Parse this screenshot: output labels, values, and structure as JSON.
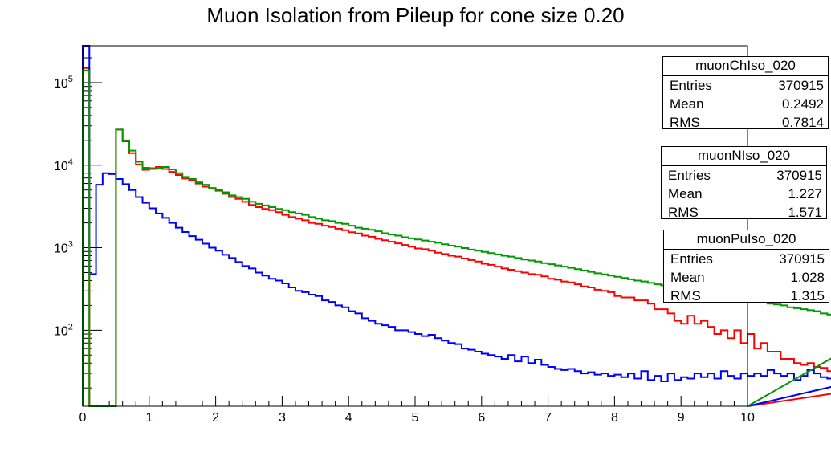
{
  "chart_data": {
    "type": "step histogram",
    "title": "Muon Isolation from Pileup for cone size 0.20",
    "xlim": [
      0,
      10
    ],
    "ylim": [
      12,
      280000
    ],
    "yscale": "log",
    "bin_width": 0.1,
    "x_ticks": [
      "0",
      "1",
      "2",
      "3",
      "4",
      "5",
      "6",
      "7",
      "8",
      "9",
      "10"
    ],
    "y_ticks": [
      {
        "value": 100000,
        "base": "10",
        "exp": "5"
      },
      {
        "value": 10000,
        "base": "10",
        "exp": "4"
      },
      {
        "value": 1000,
        "base": "10",
        "exp": "3"
      },
      {
        "value": 100,
        "base": "10",
        "exp": "2"
      }
    ],
    "series": [
      {
        "name": "muonChIso_020",
        "color": "#ff0000",
        "values": [
          150000,
          12,
          12,
          12,
          12,
          27000,
          19500,
          14000,
          10200,
          8800,
          9200,
          9500,
          9000,
          8300,
          7600,
          6900,
          6500,
          6000,
          5500,
          5200,
          4900,
          4500,
          4100,
          3900,
          3600,
          3300,
          3100,
          2950,
          2850,
          2700,
          2500,
          2350,
          2250,
          2150,
          2000,
          1950,
          1850,
          1780,
          1700,
          1630,
          1540,
          1490,
          1400,
          1360,
          1280,
          1230,
          1180,
          1130,
          1080,
          1030,
          980,
          960,
          920,
          870,
          840,
          800,
          780,
          740,
          710,
          680,
          640,
          620,
          590,
          560,
          540,
          520,
          500,
          480,
          470,
          450,
          420,
          410,
          390,
          380,
          360,
          340,
          330,
          310,
          300,
          290,
          260,
          250,
          250,
          230,
          230,
          210,
          180,
          180,
          160,
          130,
          120,
          150,
          120,
          130,
          110,
          90,
          100,
          80,
          100,
          70,
          90,
          60,
          70,
          55,
          55,
          45,
          45,
          40,
          38,
          40,
          36,
          35,
          32,
          30,
          33,
          35,
          32,
          30,
          28,
          30,
          24,
          22
        ]
      },
      {
        "name": "muonNIso_020",
        "color": "#0000ff",
        "values": [
          280000,
          480,
          5800,
          8000,
          7800,
          6800,
          5900,
          5000,
          4100,
          3500,
          3000,
          2600,
          2300,
          2000,
          1750,
          1550,
          1380,
          1250,
          1120,
          1000,
          920,
          820,
          750,
          670,
          600,
          560,
          500,
          460,
          420,
          400,
          370,
          330,
          300,
          290,
          270,
          260,
          230,
          220,
          200,
          190,
          170,
          160,
          140,
          130,
          120,
          115,
          110,
          100,
          100,
          95,
          90,
          85,
          88,
          80,
          75,
          70,
          68,
          60,
          58,
          55,
          52,
          50,
          48,
          45,
          50,
          42,
          48,
          40,
          44,
          38,
          36,
          34,
          33,
          34,
          32,
          30,
          31,
          29,
          30,
          28,
          29,
          27,
          30,
          26,
          32,
          25,
          28,
          24,
          30,
          25,
          27,
          26,
          30,
          27,
          30,
          26,
          32,
          28,
          26,
          30,
          28,
          30,
          28,
          33,
          30,
          28,
          30,
          25,
          28,
          33,
          30,
          27,
          26,
          30,
          28,
          32,
          30,
          26
        ]
      },
      {
        "name": "muonPuIso_020",
        "color": "#009900",
        "values": [
          140000,
          12,
          12,
          12,
          12,
          27000,
          20000,
          15000,
          11000,
          9300,
          9000,
          9300,
          9500,
          8900,
          8000,
          7200,
          6800,
          6200,
          5800,
          5300,
          5000,
          4700,
          4300,
          4100,
          3900,
          3600,
          3400,
          3250,
          3100,
          2950,
          2850,
          2700,
          2600,
          2500,
          2350,
          2250,
          2150,
          2100,
          2000,
          1950,
          1850,
          1750,
          1700,
          1650,
          1580,
          1500,
          1450,
          1400,
          1340,
          1300,
          1260,
          1220,
          1180,
          1150,
          1100,
          1060,
          1030,
          990,
          950,
          920,
          890,
          860,
          830,
          800,
          780,
          750,
          720,
          700,
          680,
          650,
          630,
          610,
          590,
          570,
          550,
          530,
          510,
          490,
          475,
          460,
          445,
          430,
          415,
          400,
          390,
          375,
          360,
          350,
          340,
          330,
          320,
          310,
          300,
          290,
          280,
          270,
          265,
          255,
          250,
          240,
          235,
          225,
          220,
          210,
          205,
          200,
          190,
          185,
          180,
          175,
          170,
          160,
          155,
          150,
          140,
          130,
          125,
          115,
          110,
          100
        ]
      }
    ],
    "legend_stats": [
      {
        "name": "muonChIso_020",
        "entries": "370915",
        "mean": "0.2492",
        "rms": "0.7814"
      },
      {
        "name": "muonNIso_020",
        "entries": "370915",
        "mean": "1.227",
        "rms": "1.571"
      },
      {
        "name": "muonPuIso_020",
        "entries": "370915",
        "mean": "1.028",
        "rms": "1.315"
      }
    ],
    "stats_labels": {
      "entries": "Entries",
      "mean": "Mean",
      "rms": "RMS"
    },
    "legend_placement": "right, stacked vertically",
    "grid": false
  }
}
